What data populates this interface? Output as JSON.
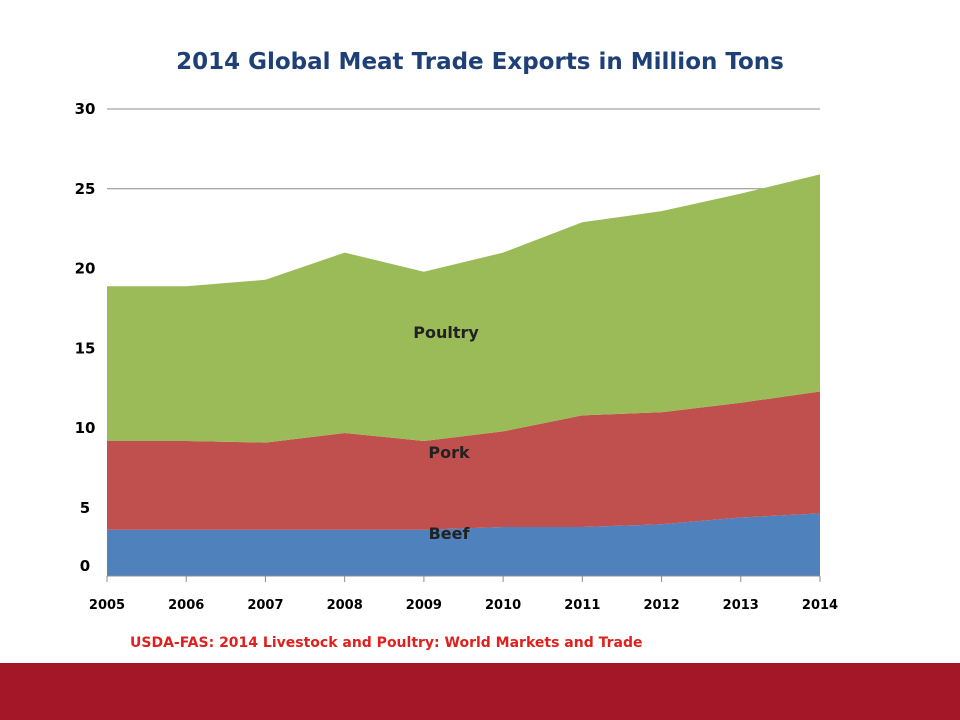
{
  "title": "2014 Global Meat Trade Exports in Million Tons",
  "source": "USDA-FAS: 2014 Livestock and Poultry: World Markets and Trade",
  "colors": {
    "title": "#1f3f77",
    "source": "#e0201e",
    "footer": "#a31729",
    "grid": "#8c8c8c",
    "axis": "#8c8c8c"
  },
  "chart_data": {
    "type": "area",
    "stacked": true,
    "x": [
      "2005",
      "2006",
      "2007",
      "2008",
      "2009",
      "2010",
      "2011",
      "2012",
      "2013",
      "2014"
    ],
    "y_ticks": [
      "0",
      "5",
      "10",
      "15",
      "20",
      "25",
      "30"
    ],
    "ylim": [
      0,
      30
    ],
    "grid": true,
    "series": [
      {
        "name": "Beef",
        "color": "#4f81bd",
        "values": [
          3.4,
          3.4,
          3.4,
          3.4,
          3.4,
          3.6,
          3.6,
          3.8,
          4.3,
          4.6
        ]
      },
      {
        "name": "Pork",
        "color": "#c0504d",
        "values": [
          5.8,
          5.8,
          5.7,
          6.3,
          5.8,
          6.2,
          7.2,
          7.2,
          7.3,
          7.7
        ]
      },
      {
        "name": "Poultry",
        "color": "#9bbb59",
        "values": [
          9.7,
          9.7,
          10.2,
          11.3,
          10.6,
          11.2,
          12.1,
          12.6,
          13.1,
          13.6
        ]
      }
    ]
  }
}
